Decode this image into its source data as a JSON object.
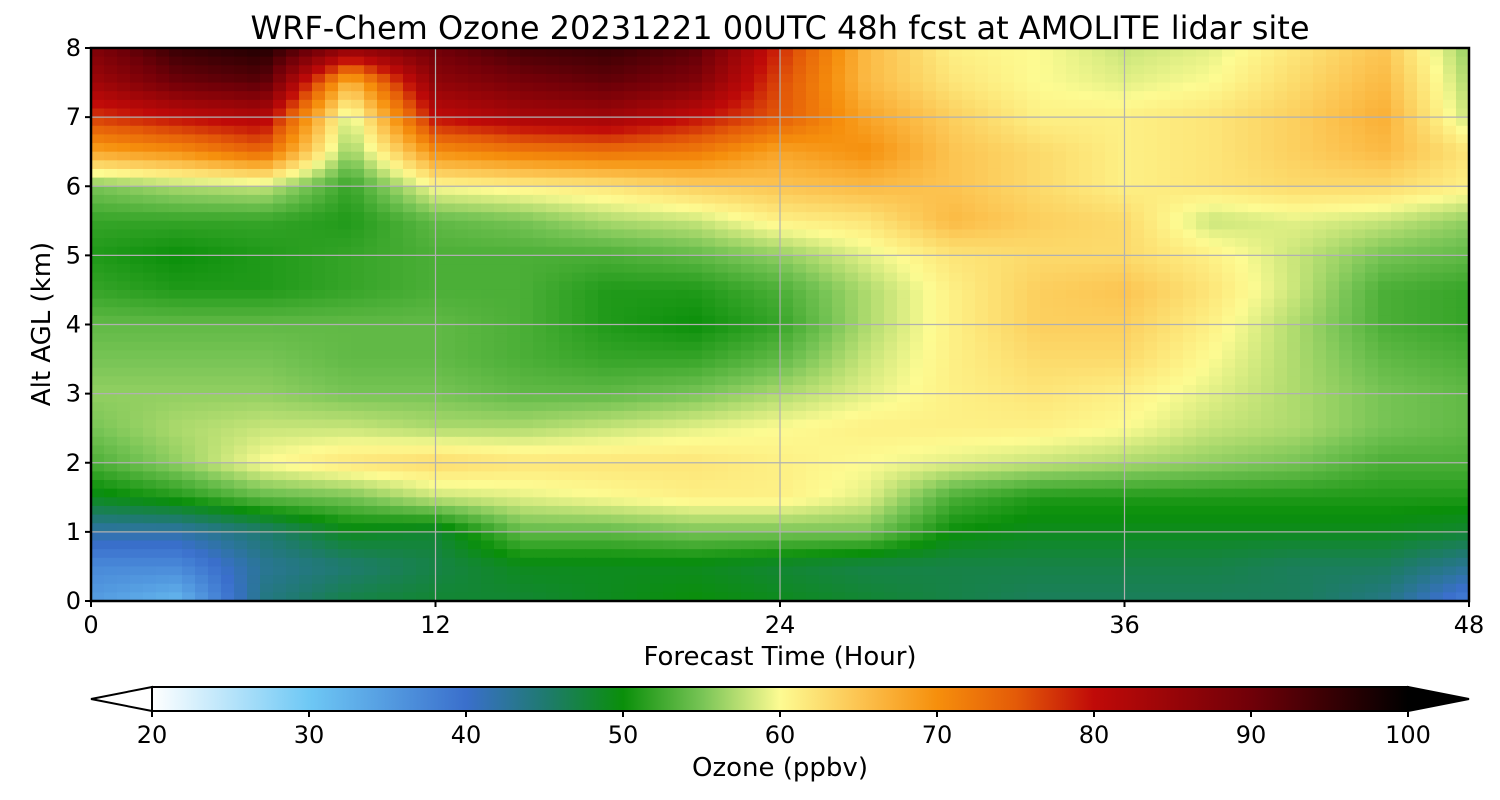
{
  "chart_data": {
    "type": "heatmap",
    "title": "WRF-Chem Ozone  20231221 00UTC 48h fcst at AMOLITE lidar site",
    "xlabel": "Forecast Time (Hour)",
    "ylabel": "Alt AGL (km)",
    "xlim": [
      0,
      48
    ],
    "ylim": [
      0,
      8
    ],
    "x_ticks": [
      "0",
      "12",
      "24",
      "36",
      "48"
    ],
    "y_ticks": [
      "0",
      "1",
      "2",
      "3",
      "4",
      "5",
      "6",
      "7",
      "8"
    ],
    "grid": true,
    "colorbar": {
      "label": "Ozone  (ppbv)",
      "placement": "bottom",
      "range": [
        20,
        100
      ],
      "extend": "both",
      "ticks": [
        "20",
        "30",
        "40",
        "50",
        "60",
        "70",
        "80",
        "90",
        "100"
      ],
      "colors": [
        {
          "v": 20,
          "c": "#ffffff"
        },
        {
          "v": 30,
          "c": "#6ec8f5"
        },
        {
          "v": 40,
          "c": "#3a6fcc"
        },
        {
          "v": 45,
          "c": "#1f7a70"
        },
        {
          "v": 50,
          "c": "#0a8f0a"
        },
        {
          "v": 55,
          "c": "#77c455"
        },
        {
          "v": 60,
          "c": "#fdfb92"
        },
        {
          "v": 65,
          "c": "#fcc451"
        },
        {
          "v": 70,
          "c": "#f68f0c"
        },
        {
          "v": 75,
          "c": "#e45b08"
        },
        {
          "v": 80,
          "c": "#c00a08"
        },
        {
          "v": 90,
          "c": "#700008"
        },
        {
          "v": 100,
          "c": "#000000"
        }
      ]
    },
    "x_hours": [
      0,
      3,
      6,
      9,
      12,
      15,
      18,
      21,
      24,
      27,
      30,
      33,
      36,
      39,
      42,
      45,
      48
    ],
    "y_km": [
      0,
      0.5,
      1,
      1.5,
      2,
      2.5,
      3,
      3.5,
      4,
      4.5,
      5,
      5.5,
      6,
      6.5,
      7,
      7.5,
      8
    ],
    "ozone_ppbv": [
      [
        35,
        32,
        44,
        47,
        48,
        48,
        49,
        50,
        49,
        48,
        47,
        46,
        46,
        46,
        46,
        44,
        38
      ],
      [
        37,
        37,
        43,
        45,
        47,
        49,
        49,
        49,
        48,
        47,
        47,
        47,
        47,
        47,
        46,
        46,
        43
      ],
      [
        42,
        42,
        45,
        49,
        48,
        54,
        54,
        55,
        55,
        55,
        50,
        49,
        49,
        49,
        49,
        49,
        48
      ],
      [
        49,
        51,
        54,
        55,
        58,
        59,
        60,
        61,
        61,
        59,
        53,
        51,
        51,
        51,
        51,
        51,
        51
      ],
      [
        53,
        56,
        60,
        62,
        63,
        62,
        62,
        62,
        61,
        60,
        59,
        58,
        57,
        56,
        55,
        53,
        53
      ],
      [
        55,
        57,
        58,
        58,
        57,
        57,
        58,
        59,
        60,
        61,
        61,
        61,
        60,
        58,
        57,
        55,
        54
      ],
      [
        56,
        56,
        56,
        55,
        55,
        54,
        54,
        55,
        57,
        59,
        61,
        62,
        61,
        59,
        57,
        55,
        54
      ],
      [
        55,
        55,
        55,
        54,
        54,
        53,
        52,
        52,
        54,
        58,
        61,
        63,
        63,
        60,
        57,
        54,
        53
      ],
      [
        54,
        54,
        54,
        54,
        54,
        53,
        51,
        50,
        52,
        57,
        61,
        64,
        64,
        61,
        57,
        53,
        52
      ],
      [
        52,
        51,
        51,
        52,
        53,
        53,
        51,
        51,
        53,
        57,
        61,
        64,
        65,
        62,
        58,
        53,
        52
      ],
      [
        51,
        50,
        51,
        52,
        53,
        53,
        53,
        54,
        56,
        59,
        62,
        63,
        63,
        61,
        58,
        55,
        54
      ],
      [
        52,
        52,
        52,
        51,
        54,
        55,
        57,
        58,
        61,
        62,
        66,
        64,
        63,
        58,
        59,
        58,
        56
      ],
      [
        55,
        57,
        58,
        52,
        60,
        61,
        62,
        64,
        65,
        66,
        65,
        63,
        61,
        62,
        63,
        63,
        61
      ],
      [
        68,
        70,
        74,
        56,
        70,
        72,
        73,
        72,
        68,
        70,
        65,
        63,
        61,
        62,
        64,
        66,
        62
      ],
      [
        77,
        80,
        82,
        58,
        80,
        83,
        84,
        80,
        75,
        68,
        64,
        61,
        61,
        62,
        64,
        67,
        58
      ],
      [
        84,
        90,
        92,
        66,
        86,
        89,
        91,
        88,
        76,
        66,
        62,
        60,
        59,
        60,
        63,
        66,
        57
      ],
      [
        88,
        95,
        97,
        86,
        90,
        94,
        95,
        92,
        78,
        66,
        61,
        60,
        58,
        59,
        62,
        65,
        56
      ]
    ]
  }
}
